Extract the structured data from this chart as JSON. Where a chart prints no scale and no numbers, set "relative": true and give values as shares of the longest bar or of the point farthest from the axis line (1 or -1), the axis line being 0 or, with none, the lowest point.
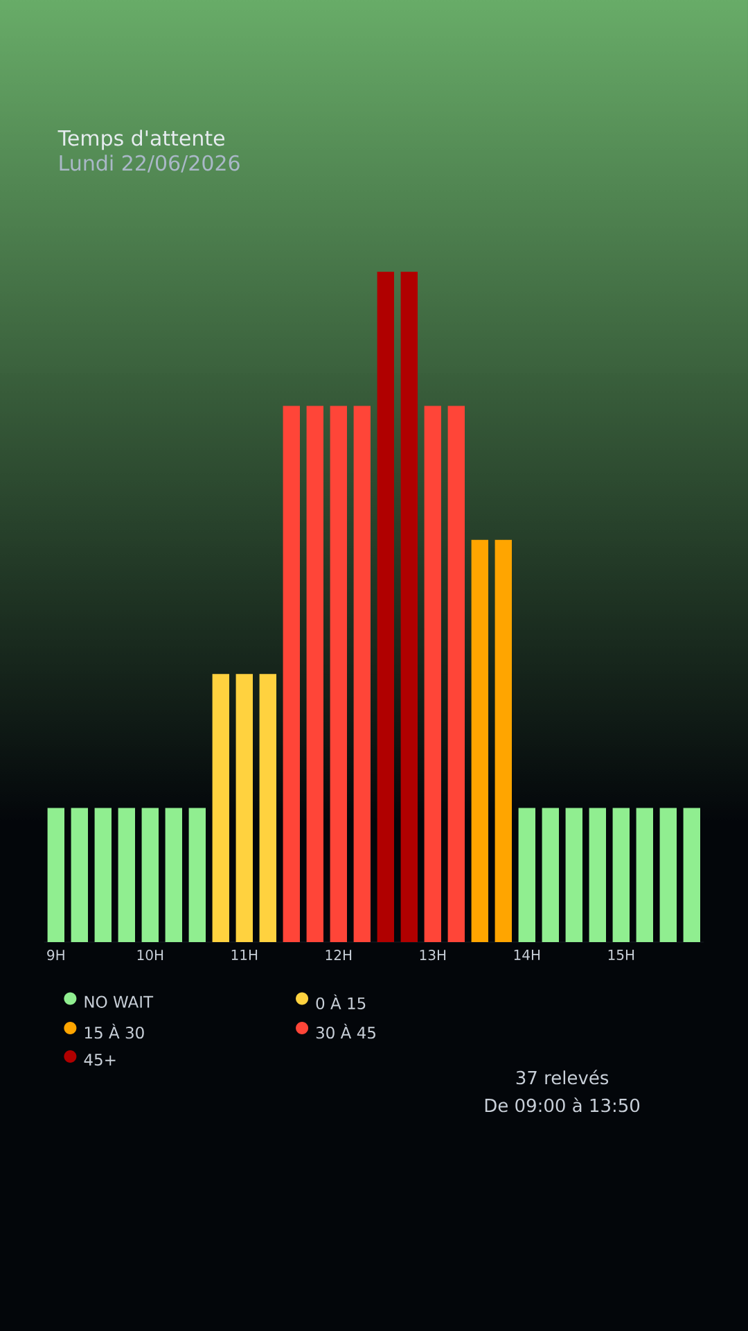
{
  "chart_data": {
    "type": "bar",
    "title": "Temps d'attente",
    "subtitle": "Lundi 22/06/2026",
    "relative": true,
    "stacked": true,
    "categories": [
      "9H",
      null,
      null,
      null,
      "10H",
      null,
      null,
      null,
      "11H",
      null,
      null,
      null,
      "12H",
      null,
      null,
      null,
      "13H",
      null,
      null,
      null,
      "14H",
      null,
      null,
      null,
      "15H",
      null,
      null,
      null
    ],
    "series": [
      {
        "name": "NO WAIT",
        "color": "#90ee90",
        "values": [
          0.2,
          0.2,
          0.2,
          0.2,
          0.2,
          0.2,
          0.2,
          null,
          null,
          null,
          null,
          null,
          null,
          null,
          null,
          null,
          null,
          null,
          null,
          null,
          0.2,
          0.2,
          0.2,
          0.2,
          0.2,
          0.2,
          0.2,
          0.2
        ]
      },
      {
        "name": "0 À 15",
        "color": "#ffd23f",
        "values": [
          null,
          null,
          null,
          null,
          null,
          null,
          null,
          0.4,
          0.4,
          0.4,
          null,
          null,
          null,
          null,
          null,
          null,
          null,
          null,
          null,
          null,
          null,
          null,
          null,
          null,
          null,
          null,
          null,
          null
        ]
      },
      {
        "name": "15 À 30",
        "color": "#ffa500",
        "values": [
          null,
          null,
          null,
          null,
          null,
          null,
          null,
          null,
          null,
          null,
          null,
          null,
          null,
          null,
          null,
          null,
          null,
          null,
          0.6,
          0.6,
          null,
          null,
          null,
          null,
          null,
          null,
          null,
          null
        ]
      },
      {
        "name": "30 À 45",
        "color": "#ff4538",
        "values": [
          null,
          null,
          null,
          null,
          null,
          null,
          null,
          null,
          null,
          null,
          0.8,
          0.8,
          0.8,
          0.8,
          null,
          null,
          0.8,
          0.8,
          null,
          null,
          null,
          null,
          null,
          null,
          null,
          null,
          null,
          null
        ]
      },
      {
        "name": "45+",
        "color": "#b00000",
        "values": [
          null,
          null,
          null,
          null,
          null,
          null,
          null,
          null,
          null,
          null,
          null,
          null,
          null,
          null,
          1,
          1,
          null,
          null,
          null,
          null,
          null,
          null,
          null,
          null,
          null,
          null,
          null,
          null
        ]
      }
    ],
    "legend": "bottom left",
    "annotations": [
      "37 relevés",
      "De 09:00 à 13:50"
    ]
  }
}
